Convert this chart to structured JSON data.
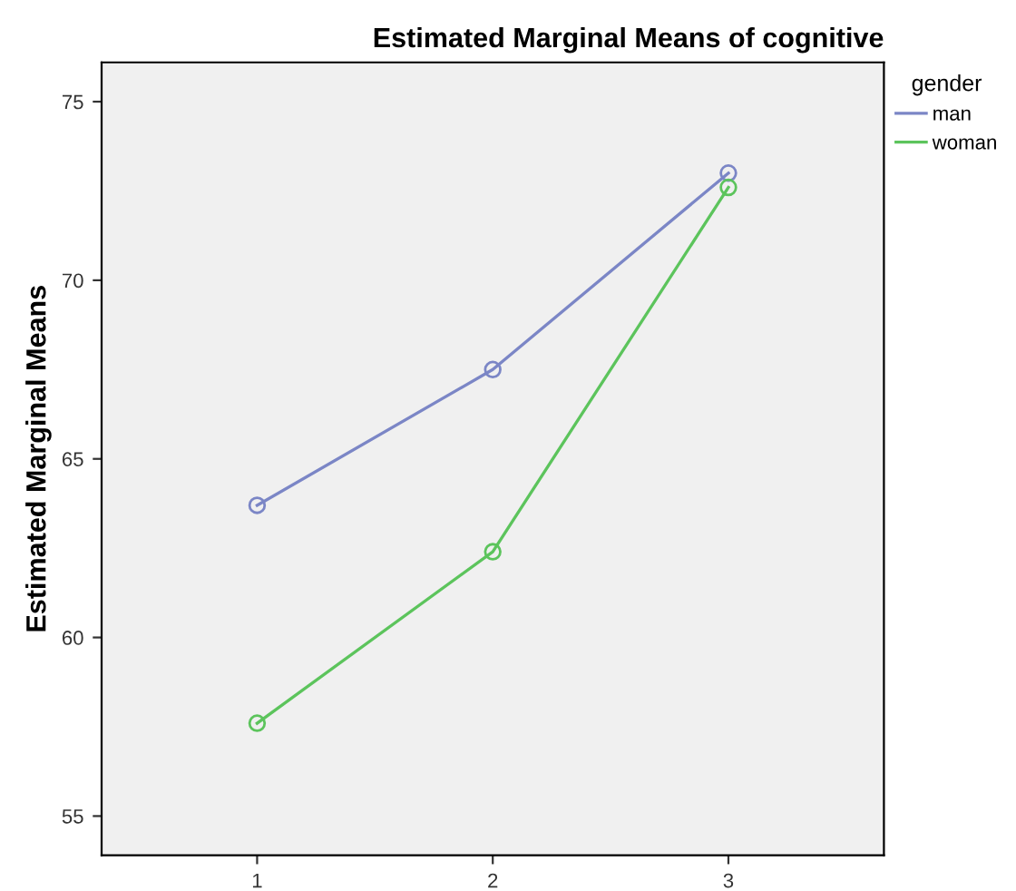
{
  "chart_data": {
    "type": "line",
    "title": "Estimated Marginal Means of cognitive",
    "ylabel": "Estimated Marginal Means",
    "legend_title": "gender",
    "categories": [
      "1",
      "2",
      "3"
    ],
    "series": [
      {
        "name": "man",
        "color": "#7b86c6",
        "values": [
          63.7,
          67.5,
          73.0
        ]
      },
      {
        "name": "woman",
        "color": "#5cc45c",
        "values": [
          57.6,
          62.4,
          72.6
        ]
      }
    ],
    "ylim": [
      53.9,
      76.1
    ],
    "yticks": [
      55,
      60,
      65,
      70,
      75
    ],
    "grid": false,
    "legend": "top right",
    "marker": "circle",
    "line_style": "solid"
  }
}
